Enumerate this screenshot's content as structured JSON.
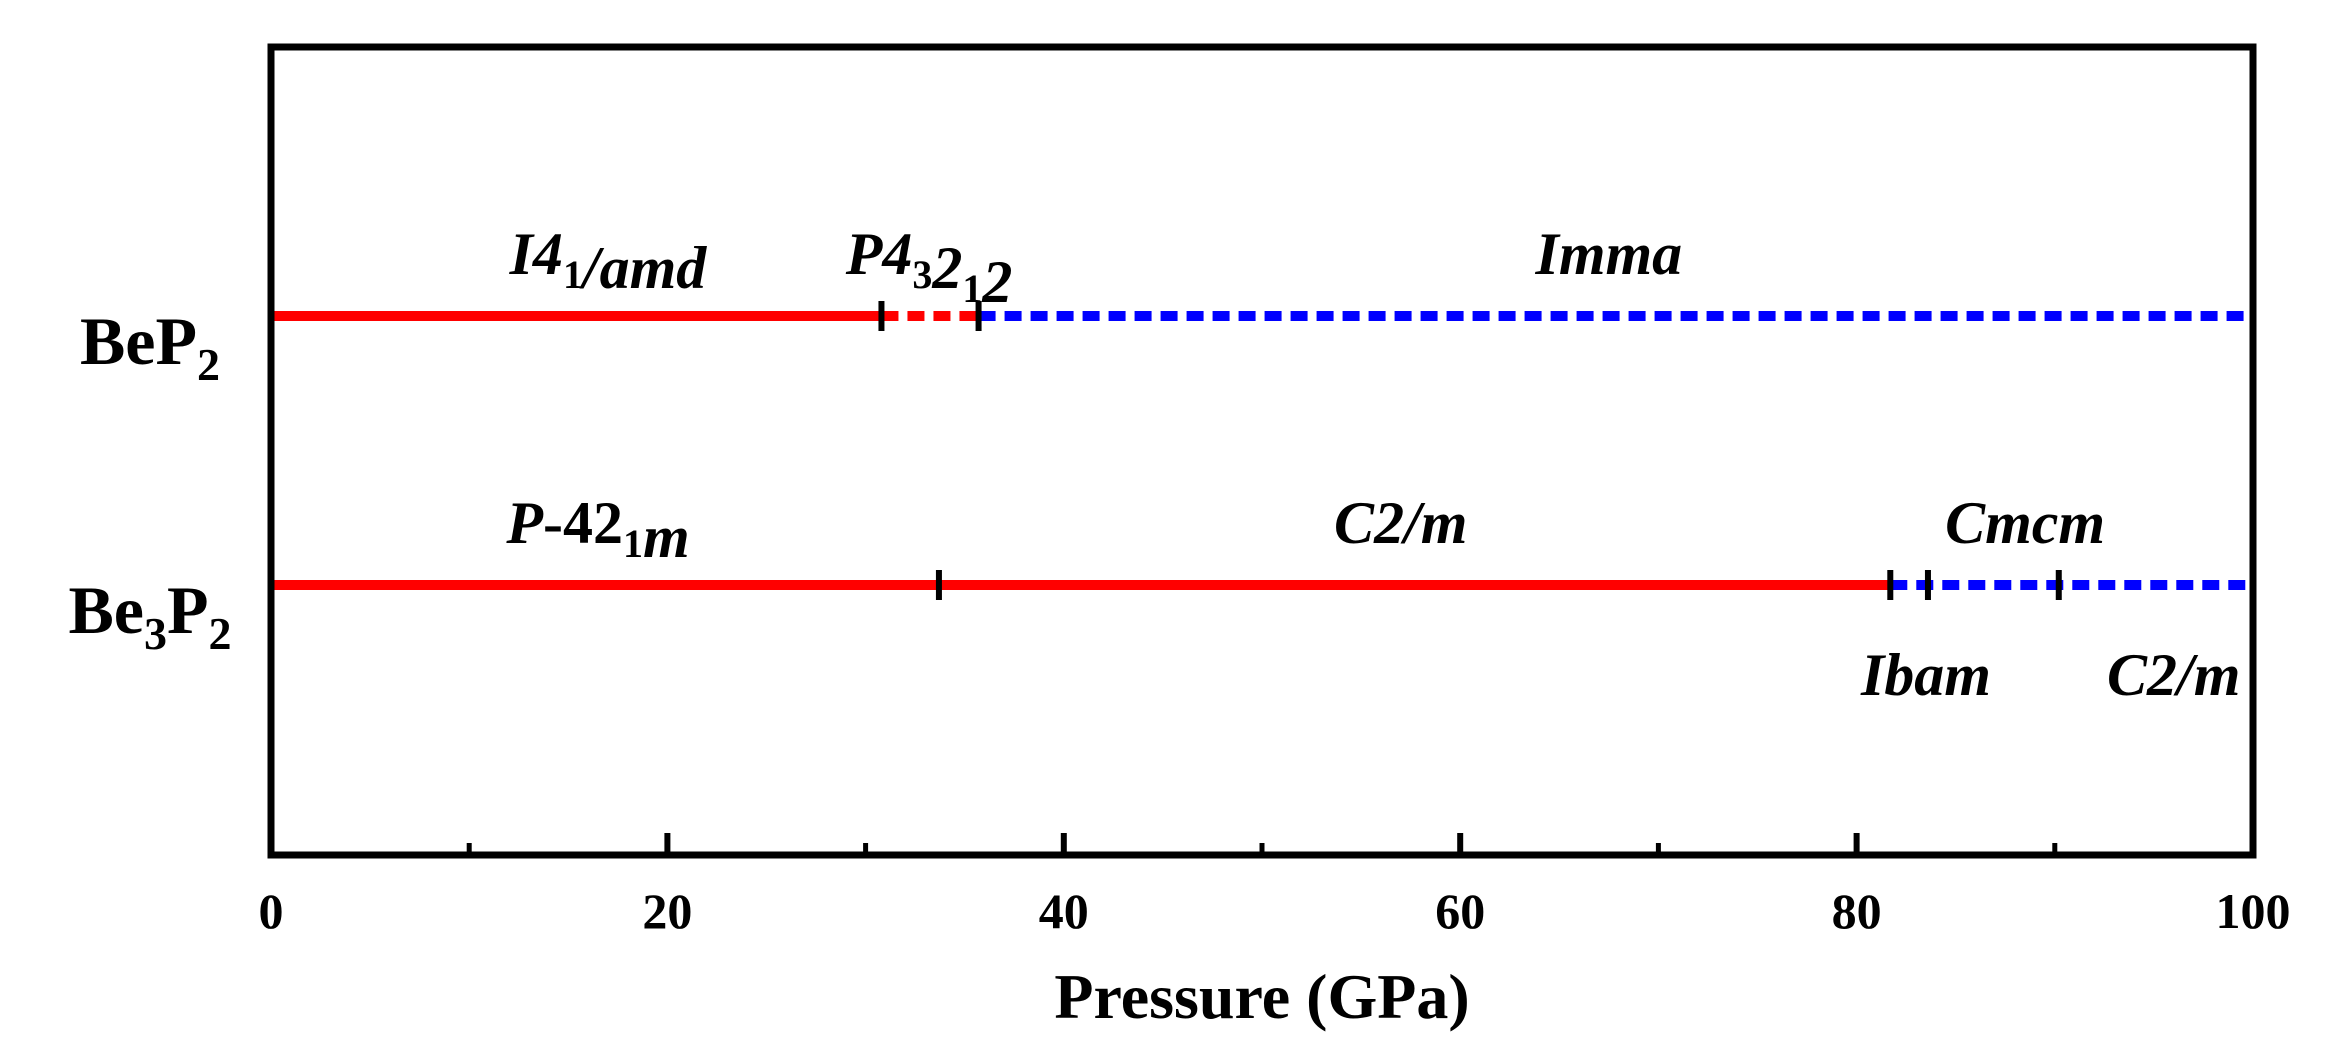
{
  "chart_data": {
    "type": "phase-diagram",
    "title": "",
    "xlabel": "Pressure (GPa)",
    "ylabel": "",
    "xlim": [
      0,
      100
    ],
    "x_ticks": [
      0,
      20,
      40,
      60,
      80,
      100
    ],
    "x_minor_ticks": [
      10,
      30,
      50,
      70,
      90
    ],
    "colors": {
      "stable": "#ff0000",
      "dotted_low": "#ff0000",
      "metastable": "#0000ff",
      "marker": "#000000"
    },
    "compounds": [
      {
        "name": "BeP2",
        "label_base": "BeP",
        "label_sub": "2",
        "transitions": [
          30.8,
          35.7
        ],
        "segments": [
          {
            "from": 0,
            "to": 30.8,
            "color": "#ff0000",
            "style": "solid"
          },
          {
            "from": 30.8,
            "to": 35.7,
            "color": "#ff0000",
            "style": "dotted"
          },
          {
            "from": 35.7,
            "to": 100,
            "color": "#0000ff",
            "style": "dotted"
          }
        ],
        "phases": [
          {
            "parts": [
              {
                "t": "I4"
              },
              {
                "t": "1",
                "sub": true
              },
              {
                "t": "/amd"
              }
            ],
            "x": 17,
            "position": "above"
          },
          {
            "parts": [
              {
                "t": "P4"
              },
              {
                "t": "3",
                "sub": true
              },
              {
                "t": "2"
              },
              {
                "t": "1",
                "sub": true
              },
              {
                "t": "2"
              }
            ],
            "x": 33.2,
            "position": "above"
          },
          {
            "parts": [
              {
                "t": "Imma"
              }
            ],
            "x": 67.5,
            "position": "above"
          }
        ]
      },
      {
        "name": "Be3P2",
        "label_base": "Be",
        "label_sub": "3",
        "label_base2": "P",
        "label_sub2": "2",
        "transitions": [
          33.7,
          81.7,
          83.6,
          90.2
        ],
        "segments": [
          {
            "from": 0,
            "to": 81.7,
            "color": "#ff0000",
            "style": "solid"
          },
          {
            "from": 81.7,
            "to": 100,
            "color": "#0000ff",
            "style": "dotted"
          }
        ],
        "phases": [
          {
            "parts": [
              {
                "t": "P"
              },
              {
                "t": "-42",
                "upright": true
              },
              {
                "t": "1",
                "sub": true
              },
              {
                "t": "m"
              }
            ],
            "x": 16.5,
            "position": "above"
          },
          {
            "parts": [
              {
                "t": "C2/m"
              }
            ],
            "x": 57,
            "position": "above"
          },
          {
            "parts": [
              {
                "t": "Cmcm"
              }
            ],
            "x": 88.5,
            "position": "above"
          },
          {
            "parts": [
              {
                "t": "Ibam"
              }
            ],
            "x": 83.5,
            "position": "below"
          },
          {
            "parts": [
              {
                "t": "C2/m"
              }
            ],
            "x": 96,
            "position": "below"
          }
        ]
      }
    ]
  }
}
